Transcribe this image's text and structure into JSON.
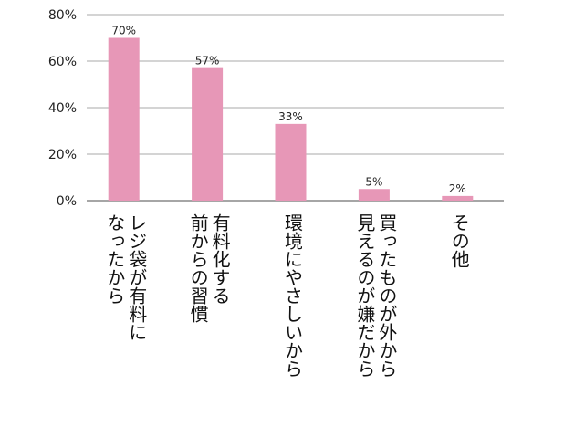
{
  "chart_data": {
    "type": "bar",
    "categories": [
      "レジ袋が有料に\nなったから",
      "有料化する\n前からの習慣",
      "環境にやさしいから",
      "買ったものが外から\n見えるのが嫌だから",
      "その他"
    ],
    "values": [
      70,
      57,
      33,
      5,
      2
    ],
    "data_labels": [
      "70%",
      "57%",
      "33%",
      "5%",
      "2%"
    ],
    "y_ticks": [
      {
        "value": 0,
        "label": "0%"
      },
      {
        "value": 20,
        "label": "20%"
      },
      {
        "value": 40,
        "label": "40%"
      },
      {
        "value": 60,
        "label": "60%"
      },
      {
        "value": 80,
        "label": "80%"
      }
    ],
    "ylim": [
      0,
      80
    ],
    "grid": true,
    "legend": "none",
    "colors": {
      "bar": "#e797b7",
      "grid": "#aaaaaa",
      "axis": "#888888"
    }
  }
}
